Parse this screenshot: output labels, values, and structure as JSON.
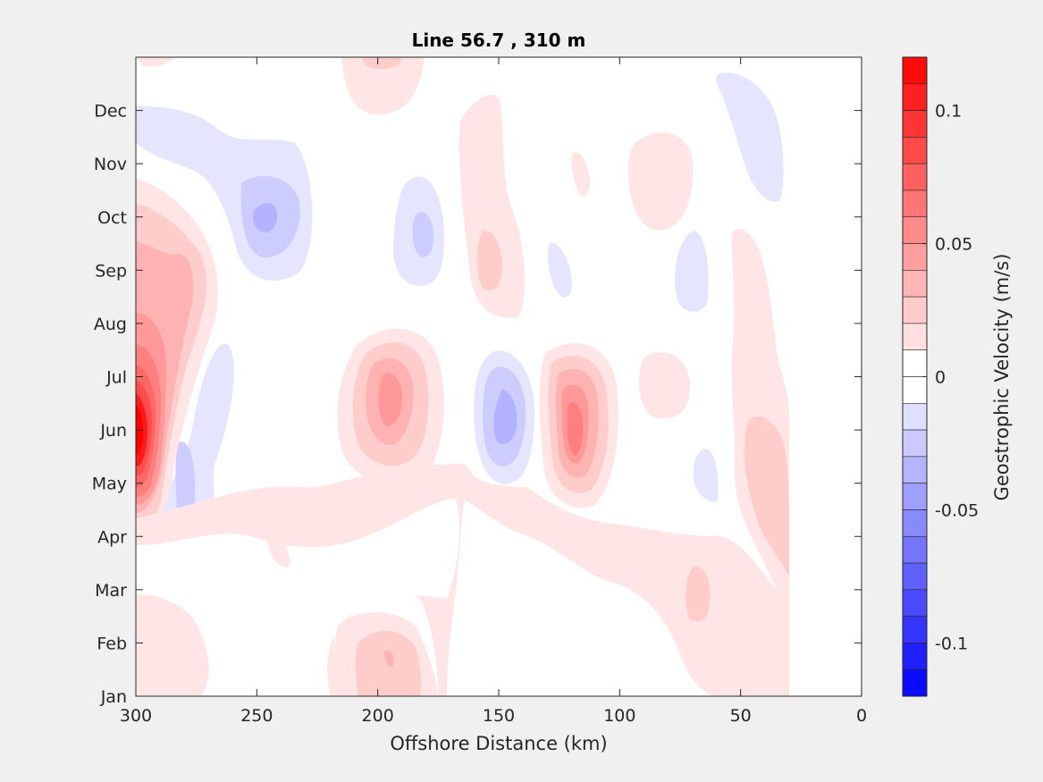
{
  "chart_data": {
    "type": "heatmap",
    "subtype": "filled-contour",
    "title": "Line 56.7 , 310 m",
    "xlabel": "Offshore Distance (km)",
    "ylabel": "",
    "xlim": [
      300,
      0
    ],
    "x_reversed": true,
    "x_ticks": [
      "300",
      "250",
      "200",
      "150",
      "100",
      "50",
      "0"
    ],
    "y_ticks": [
      "Jan",
      "Feb",
      "Mar",
      "Apr",
      "May",
      "Jun",
      "Jul",
      "Aug",
      "Sep",
      "Oct",
      "Nov",
      "Dec"
    ],
    "data_x_range_km": [
      30,
      300
    ],
    "colorbar": {
      "label": "Geostrophic Velocity (m/s)",
      "range": [
        -0.12,
        0.12
      ],
      "step": 0.01,
      "ticks": [
        "0.1",
        "0.05",
        "0",
        "-0.05",
        "-0.1"
      ],
      "positive_color": "#ff0000",
      "negative_color": "#0000ff",
      "zero_color": "#ffffff"
    },
    "features": [
      {
        "x_km": 298,
        "month": 6.0,
        "velocity": 0.12
      },
      {
        "x_km": 285,
        "month": 8.8,
        "velocity": 0.04
      },
      {
        "x_km": 295,
        "month": 1.5,
        "velocity": 0.02
      },
      {
        "x_km": 195,
        "month": 6.5,
        "velocity": 0.05
      },
      {
        "x_km": 118,
        "month": 6.0,
        "velocity": 0.06
      },
      {
        "x_km": 155,
        "month": 9.0,
        "velocity": 0.02
      },
      {
        "x_km": 195,
        "month": 1.0,
        "velocity": 0.03
      },
      {
        "x_km": 70,
        "month": 3.0,
        "velocity": 0.03
      },
      {
        "x_km": 40,
        "month": 5.0,
        "velocity": 0.02
      },
      {
        "x_km": 80,
        "month": 10.5,
        "velocity": 0.01
      },
      {
        "x_km": 150,
        "month": 6.5,
        "velocity": -0.03
      },
      {
        "x_km": 245,
        "month": 10.0,
        "velocity": -0.03
      },
      {
        "x_km": 185,
        "month": 9.7,
        "velocity": -0.02
      },
      {
        "x_km": 275,
        "month": 5.0,
        "velocity": -0.02
      },
      {
        "x_km": 35,
        "month": 12.0,
        "velocity": -0.01
      },
      {
        "x_km": 68,
        "month": 8.8,
        "velocity": -0.01
      }
    ]
  }
}
